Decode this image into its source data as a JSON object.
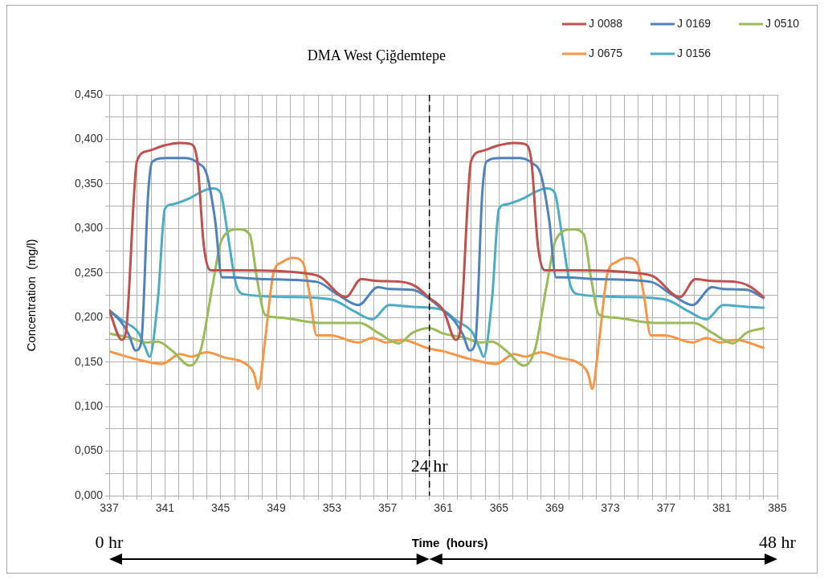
{
  "chart_data": {
    "type": "line",
    "title": "DMA West Çiğdemtepe",
    "xlabel": "Time  (hours)",
    "ylabel": "Concentration  (mg/l)",
    "series": [
      {
        "name": "J 0088",
        "color": "#c0504d",
        "x": [
          337,
          337.9,
          338.2,
          339.0,
          339.8,
          340.9,
          342.1,
          342.8,
          343.3,
          343.8,
          344.3,
          346.3,
          350.9,
          352.1,
          354.0,
          355.1,
          356.3,
          358.0,
          359.0,
          360.0,
          361,
          361.9,
          362.2,
          363.0,
          363.8,
          364.9,
          366.1,
          366.8,
          367.3,
          367.8,
          368.3,
          370.3,
          374.9,
          376.1,
          378.0,
          379.1,
          380.3,
          382.0,
          383.0,
          384.0
        ],
        "values": [
          0.208,
          0.175,
          0.184,
          0.376,
          0.387,
          0.393,
          0.396,
          0.395,
          0.379,
          0.28,
          0.253,
          0.253,
          0.25,
          0.246,
          0.223,
          0.243,
          0.241,
          0.24,
          0.235,
          0.222,
          0.208,
          0.175,
          0.184,
          0.376,
          0.387,
          0.393,
          0.396,
          0.395,
          0.379,
          0.28,
          0.253,
          0.253,
          0.25,
          0.246,
          0.223,
          0.243,
          0.241,
          0.24,
          0.235,
          0.223
        ]
      },
      {
        "name": "J 0169",
        "color": "#4f81bd",
        "x": [
          337,
          337.8,
          338.4,
          338.9,
          339.3,
          339.8,
          340.1,
          341.1,
          342.5,
          343.4,
          344.0,
          344.6,
          345.1,
          345.7,
          348.2,
          351.9,
          353.4,
          354.9,
          356.3,
          357.1,
          358.8,
          360.0,
          361,
          361.8,
          362.4,
          362.9,
          363.3,
          363.8,
          364.1,
          365.1,
          366.5,
          367.4,
          368.0,
          368.6,
          369.1,
          369.7,
          372.2,
          375.9,
          377.4,
          378.9,
          380.3,
          381.1,
          382.8,
          384.0
        ],
        "values": [
          0.208,
          0.196,
          0.181,
          0.163,
          0.172,
          0.34,
          0.375,
          0.379,
          0.379,
          0.373,
          0.361,
          0.31,
          0.245,
          0.245,
          0.243,
          0.24,
          0.226,
          0.214,
          0.234,
          0.232,
          0.231,
          0.221,
          0.208,
          0.196,
          0.181,
          0.163,
          0.172,
          0.34,
          0.375,
          0.379,
          0.379,
          0.373,
          0.361,
          0.31,
          0.245,
          0.245,
          0.243,
          0.24,
          0.226,
          0.214,
          0.234,
          0.232,
          0.231,
          0.222
        ]
      },
      {
        "name": "J 0510",
        "color": "#9bbb59",
        "x": [
          337,
          338.6,
          339.6,
          340.5,
          341.5,
          342.8,
          343.6,
          344.4,
          345.1,
          346.3,
          347.1,
          347.6,
          348.2,
          349.2,
          352.1,
          355.0,
          356.3,
          357.8,
          358.8,
          360.0,
          361,
          362.6,
          363.6,
          364.5,
          365.5,
          366.8,
          367.6,
          368.4,
          369.1,
          370.3,
          371.1,
          371.6,
          372.2,
          373.2,
          376.1,
          379.0,
          380.3,
          381.8,
          382.8,
          384.0
        ],
        "values": [
          0.182,
          0.177,
          0.172,
          0.173,
          0.163,
          0.146,
          0.165,
          0.234,
          0.288,
          0.299,
          0.293,
          0.245,
          0.203,
          0.2,
          0.194,
          0.194,
          0.183,
          0.171,
          0.183,
          0.188,
          0.182,
          0.177,
          0.172,
          0.173,
          0.163,
          0.146,
          0.165,
          0.234,
          0.288,
          0.299,
          0.293,
          0.245,
          0.203,
          0.2,
          0.194,
          0.194,
          0.183,
          0.171,
          0.183,
          0.188
        ]
      },
      {
        "name": "J 0675",
        "color": "#f79646",
        "x": [
          337,
          339.0,
          340.8,
          342.1,
          342.9,
          344.0,
          345.3,
          346.7,
          347.4,
          347.7,
          348.2,
          348.8,
          349.4,
          350.2,
          350.9,
          351.4,
          351.9,
          352.9,
          354.9,
          355.9,
          356.9,
          358.0,
          360.0,
          361,
          363.0,
          364.8,
          366.1,
          366.9,
          368.0,
          369.3,
          370.7,
          371.4,
          371.7,
          372.2,
          372.8,
          373.4,
          374.2,
          374.9,
          375.4,
          375.9,
          376.9,
          378.9,
          379.9,
          380.9,
          382.0,
          384.0
        ],
        "values": [
          0.162,
          0.153,
          0.148,
          0.159,
          0.156,
          0.161,
          0.155,
          0.149,
          0.137,
          0.12,
          0.175,
          0.25,
          0.262,
          0.267,
          0.262,
          0.226,
          0.18,
          0.18,
          0.172,
          0.177,
          0.172,
          0.175,
          0.165,
          0.162,
          0.153,
          0.148,
          0.159,
          0.156,
          0.161,
          0.155,
          0.149,
          0.137,
          0.12,
          0.175,
          0.25,
          0.262,
          0.267,
          0.262,
          0.226,
          0.18,
          0.18,
          0.172,
          0.177,
          0.172,
          0.175,
          0.166
        ]
      },
      {
        "name": "J 0156",
        "color": "#4bacc6",
        "x": [
          337,
          338.0,
          339.1,
          339.6,
          339.9,
          340.5,
          341.0,
          341.5,
          342.8,
          343.6,
          344.4,
          345.0,
          345.5,
          346.1,
          346.7,
          350.1,
          353.0,
          354.6,
          355.9,
          357.1,
          358.8,
          360.0,
          361,
          362.0,
          363.1,
          363.6,
          363.9,
          364.5,
          365.0,
          365.5,
          366.8,
          367.6,
          368.4,
          369.0,
          369.5,
          370.1,
          370.7,
          374.1,
          377.0,
          378.6,
          379.9,
          381.1,
          382.8,
          384.0
        ],
        "values": [
          0.208,
          0.196,
          0.183,
          0.166,
          0.156,
          0.221,
          0.322,
          0.327,
          0.334,
          0.341,
          0.345,
          0.34,
          0.295,
          0.238,
          0.226,
          0.223,
          0.22,
          0.207,
          0.198,
          0.214,
          0.212,
          0.211,
          0.208,
          0.196,
          0.183,
          0.166,
          0.156,
          0.221,
          0.322,
          0.327,
          0.334,
          0.341,
          0.345,
          0.34,
          0.295,
          0.238,
          0.226,
          0.223,
          0.22,
          0.207,
          0.198,
          0.214,
          0.212,
          0.211
        ]
      }
    ],
    "xlim": [
      337,
      385
    ],
    "xticks": [
      337,
      {
        "value": 338,
        "label": null
      },
      {
        "value": 339,
        "label": null
      },
      {
        "value": 340,
        "label": null
      },
      341,
      {
        "value": 342,
        "label": null
      },
      {
        "value": 343,
        "label": null
      },
      {
        "value": 344,
        "label": null
      },
      345,
      {
        "value": 346,
        "label": null
      },
      {
        "value": 347,
        "label": null
      },
      {
        "value": 348,
        "label": null
      },
      349,
      {
        "value": 350,
        "label": null
      },
      {
        "value": 351,
        "label": null
      },
      {
        "value": 352,
        "label": null
      },
      353,
      {
        "value": 354,
        "label": null
      },
      {
        "value": 355,
        "label": null
      },
      {
        "value": 356,
        "label": null
      },
      357,
      {
        "value": 358,
        "label": null
      },
      {
        "value": 359,
        "label": null
      },
      {
        "value": 360,
        "label": null
      },
      361,
      {
        "value": 362,
        "label": null
      },
      {
        "value": 363,
        "label": null
      },
      {
        "value": 364,
        "label": null
      },
      365,
      {
        "value": 366,
        "label": null
      },
      {
        "value": 367,
        "label": null
      },
      {
        "value": 368,
        "label": null
      },
      369,
      {
        "value": 370,
        "label": null
      },
      {
        "value": 371,
        "label": null
      },
      {
        "value": 372,
        "label": null
      },
      373,
      {
        "value": 374,
        "label": null
      },
      {
        "value": 375,
        "label": null
      },
      {
        "value": 376,
        "label": null
      },
      377,
      {
        "value": 378,
        "label": null
      },
      {
        "value": 379,
        "label": null
      },
      {
        "value": 380,
        "label": null
      },
      381,
      {
        "value": 382,
        "label": null
      },
      {
        "value": 383,
        "label": null
      },
      {
        "value": 384,
        "label": null
      },
      385
    ],
    "ylim": [
      0,
      0.45
    ],
    "yticks": [
      {
        "value": 0,
        "label": "0,000"
      },
      {
        "value": 0.025,
        "label": null
      },
      {
        "value": 0.05,
        "label": "0,050"
      },
      {
        "value": 0.075,
        "label": null
      },
      {
        "value": 0.1,
        "label": "0,100"
      },
      {
        "value": 0.125,
        "label": null
      },
      {
        "value": 0.15,
        "label": "0,150"
      },
      {
        "value": 0.175,
        "label": null
      },
      {
        "value": 0.2,
        "label": "0,200"
      },
      {
        "value": 0.225,
        "label": null
      },
      {
        "value": 0.25,
        "label": "0,250"
      },
      {
        "value": 0.275,
        "label": null
      },
      {
        "value": 0.3,
        "label": "0,300"
      },
      {
        "value": 0.325,
        "label": null
      },
      {
        "value": 0.35,
        "label": "0,350"
      },
      {
        "value": 0.375,
        "label": null
      },
      {
        "value": 0.4,
        "label": "0,400"
      },
      {
        "value": 0.425,
        "label": null
      },
      {
        "value": 0.45,
        "label": "0,450"
      }
    ],
    "grid": true,
    "legend": "top right",
    "marker": "none",
    "line_style": "solid",
    "ref_lines": [
      {
        "axis": "x",
        "value": 360,
        "label": "24 hr",
        "color": "#000000",
        "line_style": "dashed"
      }
    ],
    "annotations": [
      "0 hr",
      "48 hr"
    ]
  }
}
